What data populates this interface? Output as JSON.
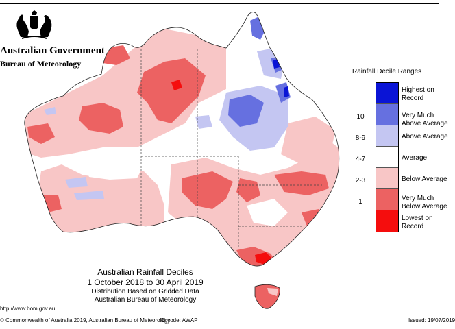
{
  "header": {
    "government": "Australian Government",
    "agency": "Bureau of Meteorology"
  },
  "map": {
    "title": "Australian Rainfall Deciles",
    "period": "1 October 2018 to 30 April 2019",
    "basis": "Distribution Based on Gridded Data",
    "source": "Australian Bureau of Meteorology",
    "colors": {
      "highest": "#0a14d6",
      "very_much_above": "#6670e0",
      "above": "#c4c6f2",
      "average": "#ffffff",
      "below": "#f8c6c6",
      "very_much_below": "#ec6262",
      "lowest": "#f50d0d"
    }
  },
  "legend": {
    "title": "Rainfall Decile Ranges",
    "categories": [
      {
        "label_line1": "Highest on",
        "label_line2": "Record",
        "range": "",
        "color": "#0a14d6"
      },
      {
        "label_line1": "Very Much",
        "label_line2": "Above Average",
        "range": "10",
        "color": "#6670e0"
      },
      {
        "label_line1": "Above Average",
        "label_line2": "",
        "range": "8-9",
        "color": "#c4c6f2"
      },
      {
        "label_line1": "Average",
        "label_line2": "",
        "range": "4-7",
        "color": "#ffffff"
      },
      {
        "label_line1": "Below Average",
        "label_line2": "",
        "range": "2-3",
        "color": "#f8c6c6"
      },
      {
        "label_line1": "Very Much",
        "label_line2": "Below Average",
        "range": "1",
        "color": "#ec6262"
      },
      {
        "label_line1": "Lowest on",
        "label_line2": "Record",
        "range": "",
        "color": "#f50d0d"
      }
    ]
  },
  "footer": {
    "website": "http://www.bom.gov.au",
    "copyright": "© Commonwealth of Australia 2019, Australian Bureau of Meteorology",
    "id_code": "ID code: AWAP",
    "issued": "Issued: 19/07/2019"
  }
}
